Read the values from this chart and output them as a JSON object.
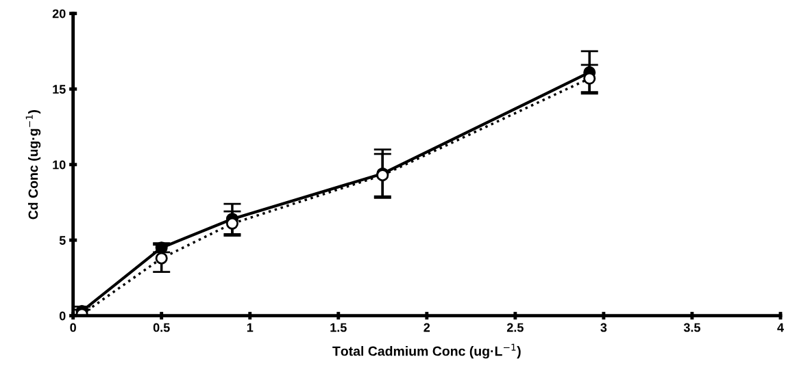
{
  "chart_data": {
    "type": "line",
    "xlabel": "Total Cadmium Conc (ug·L$^{−1}$)",
    "ylabel": "Cd Conc (ug·g$^{−1}$)",
    "xlim": [
      0,
      4
    ],
    "xticks": [
      0,
      0.5,
      1,
      1.5,
      2,
      2.5,
      3,
      3.5,
      4
    ],
    "ylim": [
      0,
      20
    ],
    "yticks": [
      0,
      5,
      10,
      15,
      20
    ],
    "grid": false,
    "legend": false,
    "marker": "circle",
    "series": [
      {
        "color": "#000000",
        "line_style": "solid",
        "x": [
          0.05,
          0.5,
          0.9,
          1.75,
          2.92
        ],
        "values": [
          0.3,
          4.5,
          6.4,
          9.4,
          16.1
        ],
        "errors": [
          0.3,
          0.3,
          1.0,
          1.6,
          1.4
        ]
      },
      {
        "color": "#000000",
        "line_style": "dotted",
        "x": [
          0.05,
          0.5,
          0.9,
          1.75,
          2.92
        ],
        "values": [
          0.1,
          3.8,
          6.1,
          9.3,
          15.7
        ],
        "errors": [
          0.3,
          0.9,
          0.8,
          1.4,
          0.9
        ]
      }
    ]
  }
}
